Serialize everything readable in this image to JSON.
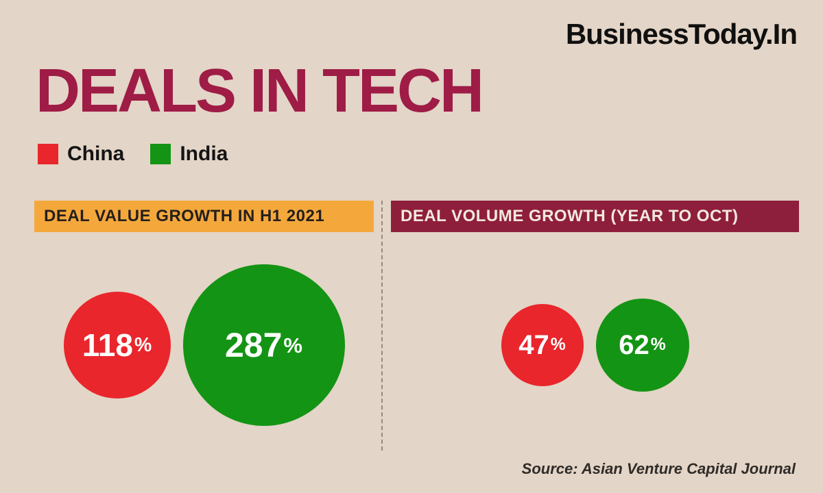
{
  "brand": "BusinessToday.In",
  "title": "DEALS IN TECH",
  "legend": [
    {
      "label": "China",
      "color": "#e9262c"
    },
    {
      "label": "India",
      "color": "#149414"
    }
  ],
  "panels": [
    {
      "header": "DEAL VALUE GROWTH IN H1 2021",
      "header_bg": "#f4a83c",
      "header_color": "#241f1b",
      "bubbles": [
        {
          "country": "China",
          "value": "118",
          "unit": "%",
          "color": "#e9262c",
          "diameter": 156
        },
        {
          "country": "India",
          "value": "287",
          "unit": "%",
          "color": "#149414",
          "diameter": 236
        }
      ]
    },
    {
      "header": "DEAL VOLUME GROWTH (YEAR TO OCT)",
      "header_bg": "#8e1f3c",
      "header_color": "#f3e9dd",
      "bubbles": [
        {
          "country": "China",
          "value": "47",
          "unit": "%",
          "color": "#e9262c",
          "diameter": 120
        },
        {
          "country": "India",
          "value": "62",
          "unit": "%",
          "color": "#149414",
          "diameter": 136
        }
      ]
    }
  ],
  "source": "Source: Asian Venture Capital Journal",
  "chart_data": {
    "type": "bubble",
    "title": "Deals in Tech",
    "legend_entries": [
      "China",
      "India"
    ],
    "legend_colors": {
      "China": "#e9262c",
      "India": "#149414"
    },
    "series": [
      {
        "name": "Deal value growth in H1 2021",
        "categories": [
          "China",
          "India"
        ],
        "values": [
          118,
          287
        ],
        "unit": "%"
      },
      {
        "name": "Deal volume growth (year to Oct)",
        "categories": [
          "China",
          "India"
        ],
        "values": [
          47,
          62
        ],
        "unit": "%"
      }
    ],
    "source": "Asian Venture Capital Journal"
  }
}
